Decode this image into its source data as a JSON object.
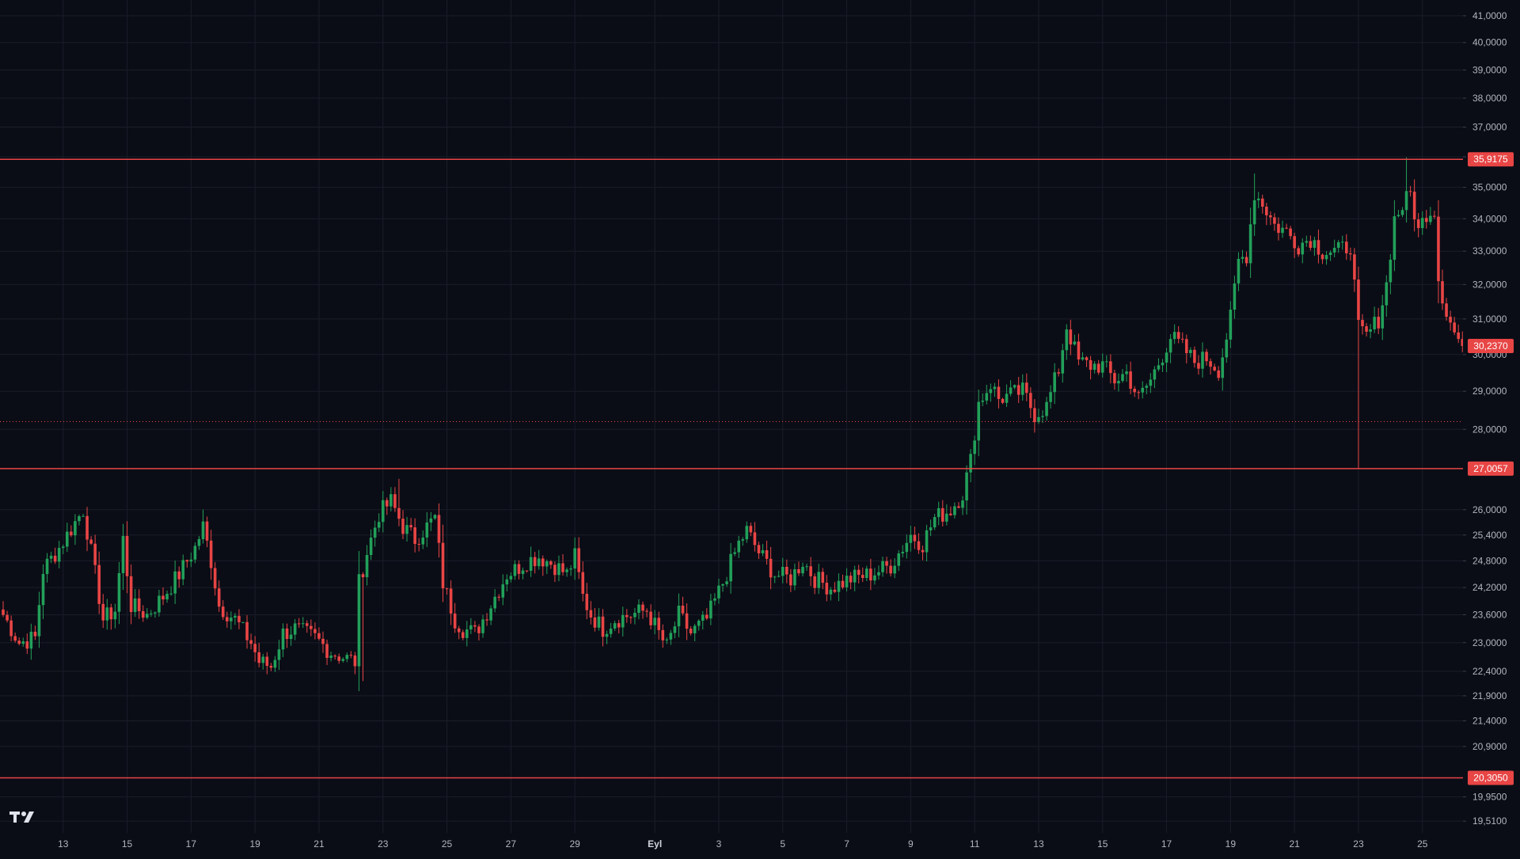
{
  "colors": {
    "background": "#0b0d16",
    "grid": "#1a1d29",
    "up": "#22a05a",
    "down": "#e84545",
    "level_line": "#e84545",
    "axis_text": "#b2b5be",
    "label_text": "#ffffff"
  },
  "logo": {
    "icon": "tradingview-logo-icon"
  },
  "chart_data": {
    "type": "candlestick",
    "y_axis": {
      "scale": "log",
      "ylim": [
        19.3,
        41.6
      ],
      "ticks": [
        19.51,
        19.95,
        20.9,
        21.4,
        21.9,
        22.4,
        23.0,
        23.6,
        24.2,
        24.8,
        25.4,
        26.0,
        28.0,
        29.0,
        30.0,
        31.0,
        32.0,
        33.0,
        34.0,
        35.0,
        36.0,
        37.0,
        38.0,
        39.0,
        40.0,
        41.0
      ],
      "tick_labels": [
        "19,5100",
        "19,9500",
        "20,9000",
        "21,4000",
        "21,9000",
        "22,4000",
        "23,0000",
        "23,6000",
        "24,2000",
        "24,8000",
        "25,4000",
        "26,0000",
        "28,0000",
        "29,0000",
        "30,0000",
        "31,0000",
        "32,0000",
        "33,0000",
        "34,0000",
        "35,0000",
        "36,0000",
        "37,0000",
        "38,0000",
        "39,0000",
        "40,0000",
        "41,0000"
      ]
    },
    "x_axis": {
      "labels": [
        "13",
        "15",
        "17",
        "19",
        "21",
        "23",
        "25",
        "27",
        "29",
        "Eyl",
        "3",
        "5",
        "7",
        "9",
        "11",
        "13",
        "15",
        "17",
        "19",
        "21",
        "23",
        "25"
      ],
      "label_bars": [
        15,
        31,
        47,
        63,
        79,
        95,
        111,
        127,
        143,
        163,
        179,
        195,
        211,
        227,
        243,
        259,
        275,
        291,
        307,
        323,
        339,
        355
      ],
      "bold_labels": [
        "Eyl"
      ]
    },
    "levels": [
      {
        "value": 35.9175,
        "label": "35,9175",
        "style": "solid"
      },
      {
        "value": 30.237,
        "label": "30,2370",
        "style": "current"
      },
      {
        "value": 28.2,
        "label": "",
        "style": "dotted"
      },
      {
        "value": 27.0057,
        "label": "27,0057",
        "style": "solid"
      },
      {
        "value": 20.305,
        "label": "20,3050",
        "style": "solid"
      }
    ],
    "waypoints": [
      [
        0,
        23.6
      ],
      [
        4,
        23.0
      ],
      [
        8,
        23.1
      ],
      [
        10,
        24.6
      ],
      [
        14,
        25.1
      ],
      [
        18,
        25.7
      ],
      [
        20,
        26.0
      ],
      [
        22,
        25.0
      ],
      [
        25,
        23.5
      ],
      [
        28,
        23.7
      ],
      [
        30,
        25.3
      ],
      [
        32,
        23.8
      ],
      [
        36,
        23.6
      ],
      [
        40,
        24.0
      ],
      [
        44,
        24.5
      ],
      [
        48,
        25.1
      ],
      [
        50,
        25.6
      ],
      [
        52,
        24.8
      ],
      [
        54,
        23.8
      ],
      [
        58,
        23.5
      ],
      [
        62,
        23.0
      ],
      [
        64,
        22.6
      ],
      [
        67,
        22.5
      ],
      [
        70,
        23.2
      ],
      [
        73,
        23.3
      ],
      [
        78,
        23.1
      ],
      [
        82,
        22.8
      ],
      [
        85,
        22.7
      ],
      [
        88,
        22.6
      ],
      [
        89,
        24.3
      ],
      [
        91,
        25.0
      ],
      [
        94,
        25.9
      ],
      [
        97,
        26.2
      ],
      [
        100,
        25.6
      ],
      [
        103,
        25.3
      ],
      [
        106,
        25.6
      ],
      [
        108,
        25.8
      ],
      [
        110,
        24.3
      ],
      [
        113,
        23.5
      ],
      [
        115,
        23.3
      ],
      [
        118,
        23.2
      ],
      [
        120,
        23.5
      ],
      [
        123,
        24.0
      ],
      [
        126,
        24.5
      ],
      [
        128,
        24.6
      ],
      [
        131,
        24.8
      ],
      [
        134,
        24.9
      ],
      [
        138,
        24.7
      ],
      [
        141,
        24.5
      ],
      [
        143,
        24.9
      ],
      [
        145,
        24.0
      ],
      [
        147,
        23.6
      ],
      [
        150,
        23.3
      ],
      [
        153,
        23.5
      ],
      [
        157,
        23.6
      ],
      [
        161,
        23.7
      ],
      [
        164,
        23.2
      ],
      [
        166,
        22.9
      ],
      [
        169,
        23.6
      ],
      [
        172,
        23.2
      ],
      [
        176,
        23.5
      ],
      [
        180,
        24.3
      ],
      [
        184,
        25.2
      ],
      [
        186,
        25.5
      ],
      [
        189,
        25.0
      ],
      [
        193,
        24.5
      ],
      [
        197,
        24.4
      ],
      [
        200,
        24.8
      ],
      [
        203,
        24.4
      ],
      [
        207,
        24.2
      ],
      [
        212,
        24.4
      ],
      [
        217,
        24.5
      ],
      [
        222,
        24.7
      ],
      [
        227,
        25.4
      ],
      [
        230,
        25.2
      ],
      [
        233,
        25.8
      ],
      [
        237,
        26.0
      ],
      [
        240,
        26.4
      ],
      [
        242,
        27.2
      ],
      [
        244,
        28.7
      ],
      [
        247,
        29.2
      ],
      [
        249,
        28.8
      ],
      [
        252,
        28.9
      ],
      [
        255,
        29.0
      ],
      [
        258,
        28.4
      ],
      [
        261,
        28.6
      ],
      [
        264,
        29.6
      ],
      [
        266,
        30.8
      ],
      [
        269,
        29.8
      ],
      [
        272,
        29.7
      ],
      [
        275,
        29.7
      ],
      [
        278,
        29.3
      ],
      [
        281,
        29.5
      ],
      [
        284,
        28.8
      ],
      [
        287,
        29.3
      ],
      [
        290,
        30.0
      ],
      [
        292,
        30.5
      ],
      [
        295,
        30.2
      ],
      [
        298,
        29.8
      ],
      [
        301,
        29.9
      ],
      [
        304,
        29.6
      ],
      [
        305,
        30.0
      ],
      [
        307,
        31.0
      ],
      [
        309,
        32.7
      ],
      [
        311,
        32.9
      ],
      [
        313,
        34.8
      ],
      [
        315,
        34.5
      ],
      [
        318,
        33.8
      ],
      [
        321,
        33.6
      ],
      [
        324,
        33.2
      ],
      [
        327,
        33.4
      ],
      [
        330,
        33.0
      ],
      [
        334,
        33.0
      ],
      [
        337,
        33.2
      ],
      [
        339,
        30.7
      ],
      [
        341,
        30.5
      ],
      [
        344,
        31.0
      ],
      [
        346,
        32.0
      ],
      [
        348,
        34.0
      ],
      [
        350,
        34.4
      ],
      [
        352,
        34.8
      ],
      [
        354,
        33.6
      ],
      [
        356,
        34.2
      ],
      [
        358,
        34.3
      ],
      [
        359,
        32.2
      ],
      [
        361,
        31.2
      ],
      [
        363,
        30.6
      ],
      [
        365,
        30.237
      ]
    ],
    "seed": 7,
    "num_bars": 366
  }
}
